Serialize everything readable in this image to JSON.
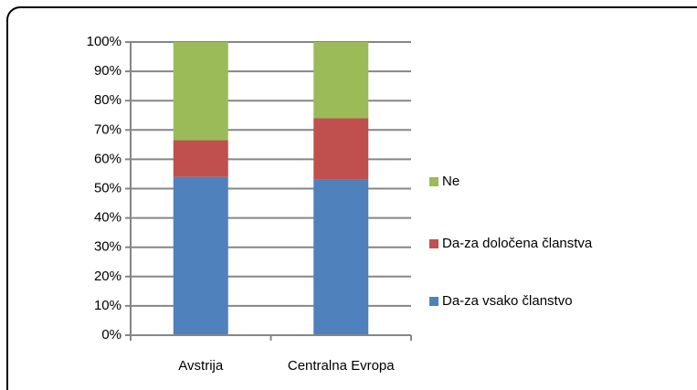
{
  "chart_data": {
    "type": "stacked-bar",
    "categories": [
      "Avstrija",
      "Centralna Evropa"
    ],
    "series": [
      {
        "name": "Da-za vsako članstvo",
        "color": "#4f81bd",
        "values": [
          54,
          53
        ]
      },
      {
        "name": "Da-za določena članstva",
        "color": "#c0504d",
        "values": [
          12.5,
          21
        ]
      },
      {
        "name": "Ne",
        "color": "#9bbb59",
        "values": [
          33.5,
          26
        ]
      }
    ],
    "ylim": [
      0,
      100
    ],
    "yticks": [
      {
        "value": 0,
        "label": "0%"
      },
      {
        "value": 10,
        "label": "10%"
      },
      {
        "value": 20,
        "label": "20%"
      },
      {
        "value": 30,
        "label": "30%"
      },
      {
        "value": 40,
        "label": "40%"
      },
      {
        "value": 50,
        "label": "50%"
      },
      {
        "value": 60,
        "label": "60%"
      },
      {
        "value": 70,
        "label": "70%"
      },
      {
        "value": 80,
        "label": "80%"
      },
      {
        "value": 90,
        "label": "90%"
      },
      {
        "value": 100,
        "label": "100%"
      }
    ],
    "grid": true,
    "legend": "right"
  }
}
